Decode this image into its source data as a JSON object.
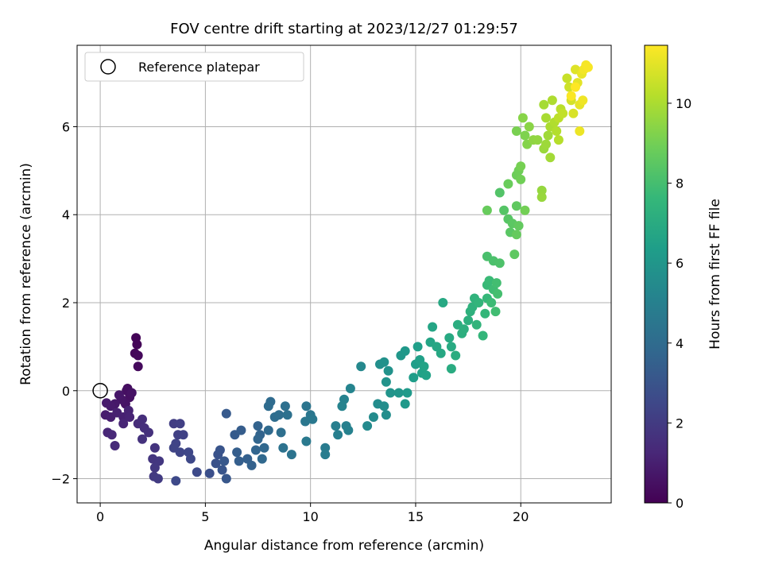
{
  "chart_data": {
    "type": "scatter",
    "title": "FOV centre drift starting at 2023/12/27 01:29:57",
    "xlabel": "Angular distance from reference (arcmin)",
    "ylabel": "Rotation from reference (arcmin)",
    "xlim": [
      -1.1,
      24.3
    ],
    "ylim": [
      -2.55,
      7.85
    ],
    "xticks": [
      0,
      5,
      10,
      15,
      20
    ],
    "yticks": [
      -2,
      0,
      2,
      4,
      6
    ],
    "grid": true,
    "legend": {
      "position": "top-left",
      "entries": [
        "Reference platepar"
      ]
    },
    "reference_point": {
      "x": 0,
      "y": 0
    },
    "colorbar": {
      "label": "Hours from first FF file",
      "range": [
        0,
        11.45
      ],
      "ticks": [
        0,
        2,
        4,
        6,
        8,
        10
      ],
      "colormap": "viridis"
    },
    "colors": {
      "viridis": [
        "#440154",
        "#482878",
        "#3e4989",
        "#31688e",
        "#26828e",
        "#1f9e89",
        "#35b779",
        "#6ece58",
        "#b5de2b",
        "#fde725"
      ],
      "grid": "#b0b0b0",
      "axes": "#000000"
    },
    "points": [
      [
        1.7,
        1.2,
        0.1
      ],
      [
        1.75,
        1.05,
        0.15
      ],
      [
        1.65,
        0.85,
        0.2
      ],
      [
        1.8,
        0.8,
        0.25
      ],
      [
        1.8,
        0.55,
        0.3
      ],
      [
        1.3,
        0.05,
        0.4
      ],
      [
        1.25,
        0.0,
        0.45
      ],
      [
        1.4,
        -0.15,
        0.5
      ],
      [
        1.5,
        -0.05,
        0.55
      ],
      [
        1.2,
        -0.3,
        0.6
      ],
      [
        1.0,
        -0.2,
        0.65
      ],
      [
        0.9,
        -0.1,
        0.7
      ],
      [
        0.7,
        -0.3,
        0.75
      ],
      [
        0.5,
        -0.35,
        0.8
      ],
      [
        0.3,
        -0.28,
        0.85
      ],
      [
        0.25,
        -0.55,
        0.9
      ],
      [
        0.5,
        -0.6,
        0.95
      ],
      [
        0.8,
        -0.5,
        1.0
      ],
      [
        1.1,
        -0.6,
        1.05
      ],
      [
        1.35,
        -0.45,
        1.1
      ],
      [
        1.4,
        -0.6,
        1.15
      ],
      [
        1.1,
        -0.75,
        1.2
      ],
      [
        0.35,
        -0.95,
        1.25
      ],
      [
        0.55,
        -1.0,
        1.3
      ],
      [
        0.7,
        -1.25,
        1.35
      ],
      [
        1.8,
        -0.75,
        1.45
      ],
      [
        2.0,
        -0.65,
        1.5
      ],
      [
        2.1,
        -0.85,
        1.55
      ],
      [
        2.3,
        -0.95,
        1.6
      ],
      [
        2.0,
        -1.1,
        1.65
      ],
      [
        2.6,
        -1.3,
        1.75
      ],
      [
        2.5,
        -1.55,
        1.8
      ],
      [
        2.8,
        -1.6,
        1.85
      ],
      [
        2.6,
        -1.75,
        1.9
      ],
      [
        2.55,
        -1.95,
        1.95
      ],
      [
        2.75,
        -2.0,
        2.0
      ],
      [
        3.5,
        -0.75,
        2.1
      ],
      [
        3.8,
        -0.75,
        2.15
      ],
      [
        3.7,
        -1.0,
        2.2
      ],
      [
        3.95,
        -1.0,
        2.25
      ],
      [
        3.6,
        -1.2,
        2.3
      ],
      [
        3.5,
        -1.3,
        2.35
      ],
      [
        3.8,
        -1.4,
        2.4
      ],
      [
        4.2,
        -1.4,
        2.45
      ],
      [
        4.3,
        -1.55,
        2.5
      ],
      [
        3.6,
        -2.05,
        2.55
      ],
      [
        4.6,
        -1.85,
        2.6
      ],
      [
        5.2,
        -1.88,
        2.8
      ],
      [
        5.5,
        -1.65,
        2.9
      ],
      [
        5.6,
        -1.45,
        2.95
      ],
      [
        5.7,
        -1.35,
        3.0
      ],
      [
        5.8,
        -1.8,
        3.05
      ],
      [
        6.0,
        -2.0,
        3.1
      ],
      [
        5.9,
        -1.6,
        3.15
      ],
      [
        6.0,
        -0.52,
        3.25
      ],
      [
        6.4,
        -1.0,
        3.3
      ],
      [
        6.7,
        -0.9,
        3.35
      ],
      [
        6.5,
        -1.4,
        3.4
      ],
      [
        6.6,
        -1.6,
        3.45
      ],
      [
        7.0,
        -1.55,
        3.5
      ],
      [
        7.2,
        -1.7,
        3.55
      ],
      [
        7.5,
        -0.8,
        3.6
      ],
      [
        7.6,
        -1.0,
        3.65
      ],
      [
        7.4,
        -1.35,
        3.7
      ],
      [
        7.5,
        -1.1,
        3.75
      ],
      [
        7.8,
        -1.3,
        3.8
      ],
      [
        7.7,
        -1.55,
        3.85
      ],
      [
        8.0,
        -0.9,
        3.9
      ],
      [
        8.1,
        -0.25,
        3.95
      ],
      [
        8.0,
        -0.35,
        4.0
      ],
      [
        8.3,
        -0.6,
        4.05
      ],
      [
        8.5,
        -0.55,
        4.1
      ],
      [
        8.6,
        -0.95,
        4.15
      ],
      [
        8.8,
        -0.35,
        4.2
      ],
      [
        8.9,
        -0.55,
        4.25
      ],
      [
        8.7,
        -1.3,
        4.3
      ],
      [
        9.1,
        -1.45,
        4.35
      ],
      [
        9.8,
        -0.35,
        4.45
      ],
      [
        10.0,
        -0.55,
        4.5
      ],
      [
        9.75,
        -0.7,
        4.55
      ],
      [
        10.1,
        -0.65,
        4.6
      ],
      [
        9.8,
        -1.15,
        4.65
      ],
      [
        10.7,
        -1.3,
        4.75
      ],
      [
        10.7,
        -1.45,
        4.8
      ],
      [
        11.2,
        -0.8,
        4.9
      ],
      [
        11.3,
        -1.0,
        4.95
      ],
      [
        11.7,
        -0.8,
        5.0
      ],
      [
        11.8,
        -0.9,
        5.05
      ],
      [
        11.6,
        -0.2,
        5.1
      ],
      [
        11.5,
        -0.35,
        5.15
      ],
      [
        11.9,
        0.05,
        5.2
      ],
      [
        12.4,
        0.55,
        5.35
      ],
      [
        12.7,
        -0.8,
        5.45
      ],
      [
        13.0,
        -0.6,
        5.5
      ],
      [
        13.2,
        -0.3,
        5.55
      ],
      [
        13.5,
        -0.35,
        5.6
      ],
      [
        13.6,
        -0.55,
        5.65
      ],
      [
        13.3,
        0.6,
        5.7
      ],
      [
        13.5,
        0.65,
        5.75
      ],
      [
        13.7,
        0.45,
        5.8
      ],
      [
        13.6,
        0.2,
        5.85
      ],
      [
        13.8,
        -0.05,
        5.9
      ],
      [
        14.2,
        -0.05,
        6.0
      ],
      [
        14.3,
        0.8,
        6.05
      ],
      [
        14.5,
        0.9,
        6.1
      ],
      [
        14.5,
        -0.3,
        6.15
      ],
      [
        14.6,
        -0.05,
        6.2
      ],
      [
        14.9,
        0.3,
        6.3
      ],
      [
        15.0,
        0.6,
        6.35
      ],
      [
        15.1,
        1.0,
        6.4
      ],
      [
        15.2,
        0.7,
        6.45
      ],
      [
        15.3,
        0.4,
        6.5
      ],
      [
        15.5,
        0.35,
        6.55
      ],
      [
        15.4,
        0.55,
        6.6
      ],
      [
        15.7,
        1.1,
        6.65
      ],
      [
        15.8,
        1.45,
        6.7
      ],
      [
        16.0,
        1.0,
        6.75
      ],
      [
        16.2,
        0.85,
        6.8
      ],
      [
        16.3,
        2.0,
        6.85
      ],
      [
        16.6,
        1.2,
        6.9
      ],
      [
        16.7,
        1.0,
        6.95
      ],
      [
        16.7,
        0.5,
        7.0
      ],
      [
        16.9,
        0.8,
        7.05
      ],
      [
        17.0,
        1.5,
        7.1
      ],
      [
        17.2,
        1.3,
        7.15
      ],
      [
        17.3,
        1.4,
        7.2
      ],
      [
        17.5,
        1.6,
        7.25
      ],
      [
        17.6,
        1.8,
        7.3
      ],
      [
        17.7,
        1.9,
        7.35
      ],
      [
        17.8,
        2.1,
        7.4
      ],
      [
        17.9,
        1.5,
        7.45
      ],
      [
        18.0,
        2.0,
        7.5
      ],
      [
        18.2,
        1.25,
        7.55
      ],
      [
        18.3,
        1.75,
        7.6
      ],
      [
        18.4,
        2.1,
        7.65
      ],
      [
        18.4,
        2.4,
        7.7
      ],
      [
        18.5,
        2.5,
        7.75
      ],
      [
        18.6,
        2.0,
        7.8
      ],
      [
        18.7,
        2.3,
        7.85
      ],
      [
        18.8,
        1.8,
        7.9
      ],
      [
        18.85,
        2.45,
        7.95
      ],
      [
        18.9,
        2.2,
        8.0
      ],
      [
        18.4,
        3.05,
        8.1
      ],
      [
        18.7,
        2.95,
        8.15
      ],
      [
        19.0,
        2.9,
        8.2
      ],
      [
        19.0,
        4.5,
        8.3
      ],
      [
        19.2,
        4.1,
        8.35
      ],
      [
        19.4,
        3.9,
        8.4
      ],
      [
        19.5,
        3.6,
        8.45
      ],
      [
        19.6,
        3.8,
        8.5
      ],
      [
        19.7,
        3.1,
        8.55
      ],
      [
        19.8,
        4.2,
        8.6
      ],
      [
        19.9,
        3.75,
        8.65
      ],
      [
        19.8,
        3.55,
        8.7
      ],
      [
        18.4,
        4.1,
        8.75
      ],
      [
        19.4,
        4.7,
        8.8
      ],
      [
        19.8,
        4.9,
        8.85
      ],
      [
        19.9,
        5.0,
        8.9
      ],
      [
        20.0,
        4.8,
        8.95
      ],
      [
        20.2,
        4.1,
        9.0
      ],
      [
        20.0,
        5.1,
        9.05
      ],
      [
        19.8,
        5.9,
        9.1
      ],
      [
        20.2,
        5.8,
        9.2
      ],
      [
        20.3,
        5.6,
        9.3
      ],
      [
        20.1,
        6.2,
        9.35
      ],
      [
        20.4,
        6.0,
        9.4
      ],
      [
        20.6,
        5.7,
        9.5
      ],
      [
        20.8,
        5.7,
        9.55
      ],
      [
        21.0,
        4.55,
        9.6
      ],
      [
        21.0,
        4.4,
        9.65
      ],
      [
        21.1,
        5.5,
        9.7
      ],
      [
        21.2,
        5.6,
        9.75
      ],
      [
        21.3,
        5.8,
        9.8
      ],
      [
        21.4,
        5.3,
        9.85
      ],
      [
        21.1,
        6.5,
        9.9
      ],
      [
        21.2,
        6.2,
        9.95
      ],
      [
        21.4,
        6.0,
        10.0
      ],
      [
        21.5,
        6.6,
        10.05
      ],
      [
        21.6,
        6.1,
        10.1
      ],
      [
        21.7,
        5.9,
        10.15
      ],
      [
        21.8,
        5.7,
        10.2
      ],
      [
        21.9,
        6.4,
        10.25
      ],
      [
        21.8,
        6.2,
        10.3
      ],
      [
        22.0,
        6.3,
        10.4
      ],
      [
        22.2,
        7.1,
        10.5
      ],
      [
        22.3,
        6.9,
        10.6
      ],
      [
        22.4,
        6.6,
        10.7
      ],
      [
        22.5,
        6.3,
        10.8
      ],
      [
        22.6,
        7.3,
        10.9
      ],
      [
        22.7,
        7.0,
        11.0
      ],
      [
        22.8,
        6.5,
        11.05
      ],
      [
        22.9,
        7.2,
        11.1
      ],
      [
        22.8,
        5.9,
        11.15
      ],
      [
        22.95,
        6.6,
        11.2
      ],
      [
        23.0,
        7.3,
        11.25
      ],
      [
        23.1,
        7.4,
        11.3
      ],
      [
        23.2,
        7.35,
        11.35
      ],
      [
        22.4,
        6.7,
        11.4
      ],
      [
        22.6,
        6.9,
        11.45
      ]
    ]
  }
}
